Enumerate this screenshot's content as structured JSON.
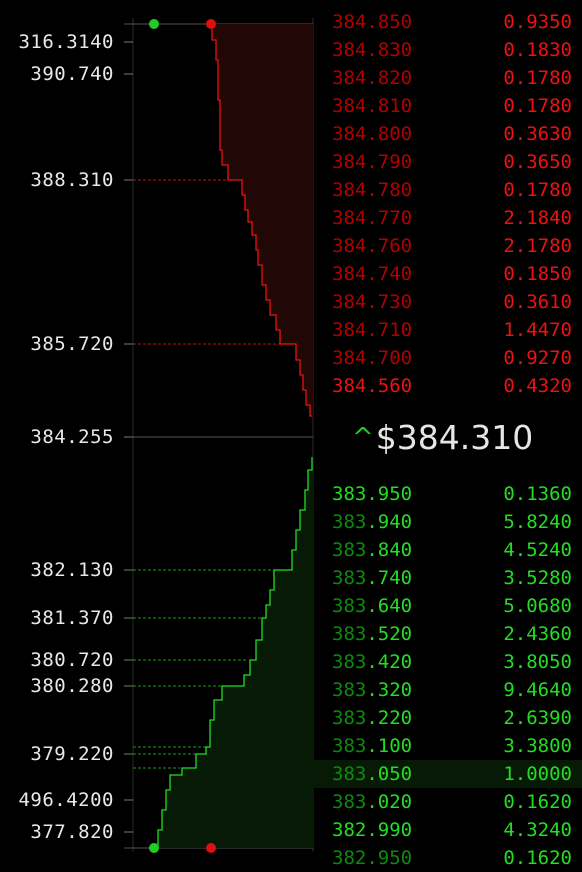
{
  "colors": {
    "ask": "#ee1111",
    "bid": "#22dd22",
    "ask_dim": "#b00000",
    "bid_dim": "#0d8a0d"
  },
  "axis_labels": [
    {
      "text": "316.3140",
      "value": 316.314
    },
    {
      "text": "390.740",
      "value": 390.74
    },
    {
      "text": "388.310",
      "value": 388.31
    },
    {
      "text": "385.720",
      "value": 385.72
    },
    {
      "text": "384.255",
      "value": 384.255
    },
    {
      "text": "382.130",
      "value": 382.13
    },
    {
      "text": "381.370",
      "value": 381.37
    },
    {
      "text": "380.720",
      "value": 380.72
    },
    {
      "text": "380.280",
      "value": 380.28
    },
    {
      "text": "379.220",
      "value": 379.22
    },
    {
      "text": "496.4200",
      "value": 496.42
    },
    {
      "text": "377.820",
      "value": 377.82
    }
  ],
  "asks": [
    {
      "price_dim": "384",
      "price_hi": ".850",
      "qty": "0.9350",
      "dim_all": true
    },
    {
      "price_dim": "384",
      "price_hi": ".830",
      "qty": "0.1830",
      "dim_all": true
    },
    {
      "price_dim": "384",
      "price_hi": ".820",
      "qty": "0.1780",
      "dim_all": true
    },
    {
      "price_dim": "384",
      "price_hi": ".810",
      "qty": "0.1780",
      "dim_all": true
    },
    {
      "price_dim": "384",
      "price_hi": ".800",
      "qty": "0.3630",
      "dim_all": true
    },
    {
      "price_dim": "384",
      "price_hi": ".790",
      "qty": "0.3650",
      "dim_all": true
    },
    {
      "price_dim": "384",
      "price_hi": ".780",
      "qty": "0.1780",
      "dim_all": true
    },
    {
      "price_dim": "384",
      "price_hi": ".770",
      "qty": "2.1840",
      "dim_all": true
    },
    {
      "price_dim": "384",
      "price_hi": ".760",
      "qty": "2.1780",
      "dim_all": true
    },
    {
      "price_dim": "384",
      "price_hi": ".740",
      "qty": "0.1850",
      "dim_all": true
    },
    {
      "price_dim": "384",
      "price_hi": ".730",
      "qty": "0.3610",
      "dim_all": true
    },
    {
      "price_dim": "384",
      "price_hi": ".710",
      "qty": "1.4470",
      "dim_all": true
    },
    {
      "price_dim": "384",
      "price_hi": ".700",
      "qty": "0.9270",
      "dim_all": true
    },
    {
      "price_dim": "",
      "price_hi": "384.560",
      "qty": "0.4320",
      "dim_all": false
    }
  ],
  "last_price": {
    "arrow": "^",
    "text": "$384.310"
  },
  "bids": [
    {
      "price_dim": "",
      "price_hi": "383.950",
      "qty": "0.1360"
    },
    {
      "price_dim": "383",
      "price_hi": ".940",
      "qty": "5.8240"
    },
    {
      "price_dim": "383",
      "price_hi": ".840",
      "qty": "4.5240"
    },
    {
      "price_dim": "383",
      "price_hi": ".740",
      "qty": "3.5280"
    },
    {
      "price_dim": "383",
      "price_hi": ".640",
      "qty": "5.0680"
    },
    {
      "price_dim": "383",
      "price_hi": ".520",
      "qty": "2.4360"
    },
    {
      "price_dim": "383",
      "price_hi": ".420",
      "qty": "3.8050"
    },
    {
      "price_dim": "383",
      "price_hi": ".320",
      "qty": "9.4640"
    },
    {
      "price_dim": "383",
      "price_hi": ".220",
      "qty": "2.6390"
    },
    {
      "price_dim": "383",
      "price_hi": ".100",
      "qty": "3.3800"
    },
    {
      "price_dim": "383",
      "price_hi": ".050",
      "qty": "1.0000",
      "highlight": true
    },
    {
      "price_dim": "383",
      "price_hi": ".020",
      "qty": "0.1620"
    },
    {
      "price_dim": "",
      "price_hi": "382.990",
      "qty": "4.3240"
    },
    {
      "price_dim": "382",
      "price_hi": ".950",
      "qty": "0.1620",
      "dim_all": true
    }
  ]
}
